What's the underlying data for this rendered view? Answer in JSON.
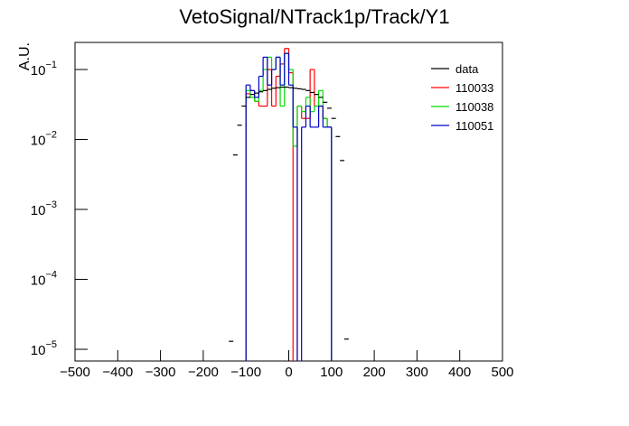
{
  "chart_data": {
    "type": "histogram",
    "title": "VetoSignal/NTrack1p/Track/Y1",
    "y_label": "A.U.",
    "log_y": true,
    "xlim": [
      -500,
      500
    ],
    "ylim": [
      6.8e-06,
      0.244
    ],
    "xticks": [
      {
        "value": -500,
        "label": "−500"
      },
      {
        "value": -400,
        "label": "−400"
      },
      {
        "value": -300,
        "label": "−300"
      },
      {
        "value": -200,
        "label": "−200"
      },
      {
        "value": -100,
        "label": "−100"
      },
      0,
      100,
      200,
      300,
      400,
      500
    ],
    "yticks": [
      {
        "value": 1e-05,
        "label": "10",
        "exponent": "−5"
      },
      {
        "value": 0.0001,
        "label": "10",
        "exponent": "−4"
      },
      {
        "value": 0.001,
        "label": "10",
        "exponent": "−3"
      },
      {
        "value": 0.01,
        "label": "10",
        "exponent": "−2"
      },
      {
        "value": 0.1,
        "label": "10",
        "exponent": "−1"
      }
    ],
    "legend_position": "upper right",
    "bins": [
      -100,
      -90,
      -80,
      -70,
      -60,
      -50,
      -40,
      -30,
      -20,
      -10,
      0,
      10,
      20,
      30,
      40,
      50,
      60,
      70,
      80,
      90,
      100
    ],
    "data": {
      "name": "data",
      "color": "#000000",
      "x": [
        -135,
        -125,
        -115,
        -105,
        -95,
        -85,
        -75,
        -65,
        -55,
        -45,
        -35,
        -25,
        -15,
        -5,
        5,
        15,
        25,
        35,
        45,
        55,
        65,
        75,
        85,
        95,
        105,
        115,
        125,
        135
      ],
      "values": [
        1.3e-05,
        0.006,
        0.016,
        0.03,
        0.04,
        0.044,
        0.046,
        0.048,
        0.05,
        0.052,
        0.054,
        0.055,
        0.056,
        0.056,
        0.055,
        0.054,
        0.053,
        0.052,
        0.05,
        0.047,
        0.044,
        0.04,
        0.034,
        0.028,
        0.02,
        0.011,
        0.005,
        1.4e-05
      ]
    },
    "series": [
      {
        "name": "110033",
        "color": "#ff0000",
        "values": [
          0.045,
          0.05,
          0.035,
          0.03,
          0.03,
          0.1,
          0.03,
          0.08,
          0.12,
          0.2,
          0.09,
          null,
          0.03,
          0.02,
          0.02,
          0.1,
          0.03,
          0.03,
          0.02,
          0.015
        ]
      },
      {
        "name": "110038",
        "color": "#00dd00",
        "values": [
          0.05,
          0.04,
          0.035,
          0.05,
          0.1,
          0.15,
          0.1,
          0.15,
          0.03,
          0.17,
          0.1,
          0.008,
          0.03,
          0.025,
          0.04,
          0.025,
          0.03,
          0.05,
          0.02,
          0.015
        ]
      },
      {
        "name": "110051",
        "color": "#0000cc",
        "values": [
          0.06,
          0.05,
          0.04,
          0.08,
          0.15,
          0.06,
          0.1,
          0.15,
          0.06,
          0.17,
          0.06,
          0.015,
          null,
          0.015,
          0.03,
          0.015,
          0.015,
          0.03,
          0.015,
          0.015
        ]
      }
    ]
  }
}
